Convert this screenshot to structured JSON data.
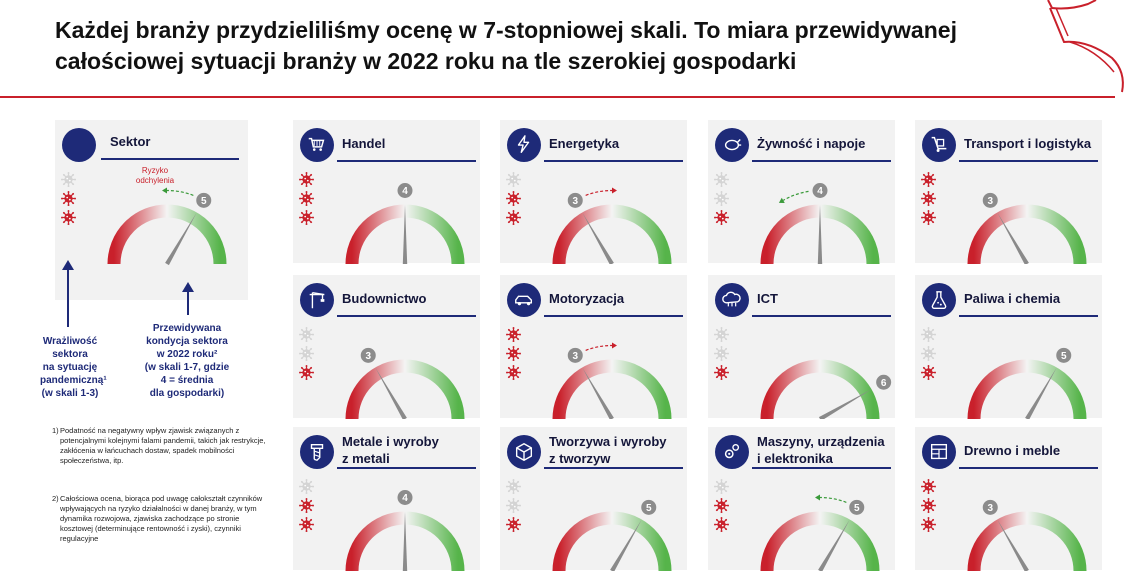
{
  "header": {
    "title_line1": "Każdej branży przydzieliliśmy ocenę w 7-stopniowej skali. To miara przewidywanej",
    "title_line2": "całościowej sytuacji branży w 2022 roku na tle szerokiej gospodarki"
  },
  "legend": {
    "title": "Sektor",
    "risk_label_line1": "Ryzyko",
    "risk_label_line2": "odchylenia",
    "sample_score": "5",
    "sample_score_value": 5,
    "sample_deviation_to": 4,
    "sample_vulnerability": 2,
    "vulnerability_annotation": [
      "Wrażliwość",
      "sektora",
      "na sytuację",
      "pandemiczną¹",
      "(w skali 1-3)"
    ],
    "condition_annotation": [
      "Przewidywana",
      "kondycja sektora",
      "w 2022 roku²",
      "(w skali 1-7, gdzie",
      "4 = średnia",
      "dla gospodarki)"
    ]
  },
  "footnotes": [
    {
      "num": "1)",
      "text": "Podatność na negatywny wpływ zjawisk związanych z potencjalnymi kolejnymi falami pandemii, takich jak restrykcje, zakłócenia w łańcuchach dostaw, spadek mobilności społeczeństwa, itp."
    },
    {
      "num": "2)",
      "text": "Całościowa ocena, biorąca pod uwagę całokształt czynników wpływających na ryzyko działalności w danej branży, w tym dynamika rozwojowa, zjawiska zachodzące po stronie kosztowej (determinujące rentowność i zyski), czynniki regulacyjne"
    }
  ],
  "colors": {
    "navy": "#1e2a78",
    "red": "#c9202b",
    "green": "#56b44a",
    "card_bg": "#f2f2f2",
    "virus_inactive": "#d4d4d4"
  },
  "sectors": [
    {
      "title_lines": [
        "Handel"
      ],
      "icon": "shopping-cart-icon",
      "score": 4,
      "vulnerability": 3,
      "deviation_to": null
    },
    {
      "title_lines": [
        "Energetyka"
      ],
      "icon": "lightning-icon",
      "score": 3,
      "vulnerability": 2,
      "deviation_to": 4
    },
    {
      "title_lines": [
        "Żywność i napoje"
      ],
      "icon": "chicken-icon",
      "score": 4,
      "vulnerability": 1,
      "deviation_to": 3
    },
    {
      "title_lines": [
        "Transport i logistyka"
      ],
      "icon": "hand-truck-icon",
      "score": 3,
      "vulnerability": 3,
      "deviation_to": null
    },
    {
      "title_lines": [
        "Budownictwo"
      ],
      "icon": "crane-icon",
      "score": 3,
      "vulnerability": 1,
      "deviation_to": null
    },
    {
      "title_lines": [
        "Motoryzacja"
      ],
      "icon": "car-icon",
      "score": 3,
      "vulnerability": 3,
      "deviation_to": 4
    },
    {
      "title_lines": [
        "ICT"
      ],
      "icon": "cloud-icon",
      "score": 6,
      "vulnerability": 1,
      "deviation_to": null
    },
    {
      "title_lines": [
        "Paliwa i chemia"
      ],
      "icon": "flask-icon",
      "score": 5,
      "vulnerability": 1,
      "deviation_to": null
    },
    {
      "title_lines": [
        "Metale i wyroby",
        "z metali"
      ],
      "icon": "screw-icon",
      "score": 4,
      "vulnerability": 2,
      "deviation_to": null
    },
    {
      "title_lines": [
        "Tworzywa i wyroby",
        "z tworzyw"
      ],
      "icon": "cube-icon",
      "score": 5,
      "vulnerability": 1,
      "deviation_to": null
    },
    {
      "title_lines": [
        "Maszyny, urządzenia",
        "i elektronika"
      ],
      "icon": "gears-icon",
      "score": 5,
      "vulnerability": 2,
      "deviation_to": 4
    },
    {
      "title_lines": [
        "Drewno i meble"
      ],
      "icon": "cabinet-icon",
      "score": 3,
      "vulnerability": 3,
      "deviation_to": null
    }
  ]
}
